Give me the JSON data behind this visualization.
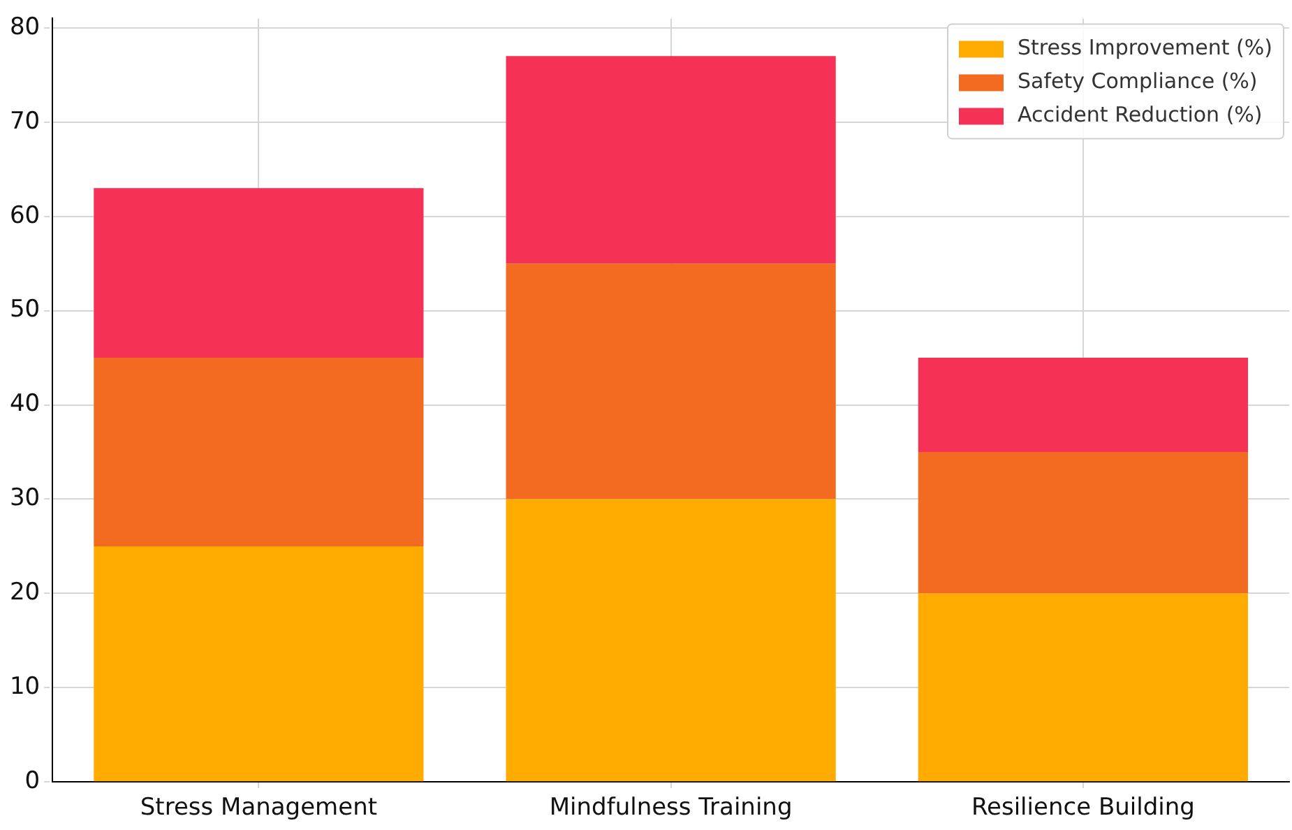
{
  "chart_data": {
    "type": "bar",
    "stacked": true,
    "categories": [
      "Stress Management",
      "Mindfulness Training",
      "Resilience Building"
    ],
    "series": [
      {
        "name": "Stress Improvement (%)",
        "color": "#ffab00",
        "values": [
          25,
          30,
          20
        ]
      },
      {
        "name": "Safety Compliance (%)",
        "color": "#f26b21",
        "values": [
          20,
          25,
          15
        ]
      },
      {
        "name": "Accident Reduction (%)",
        "color": "#f53155",
        "values": [
          18,
          22,
          10
        ]
      }
    ],
    "ylim": [
      0,
      81
    ],
    "yticks": [
      0,
      10,
      20,
      30,
      40,
      50,
      60,
      70,
      80
    ],
    "grid": true,
    "legend": "top right"
  }
}
